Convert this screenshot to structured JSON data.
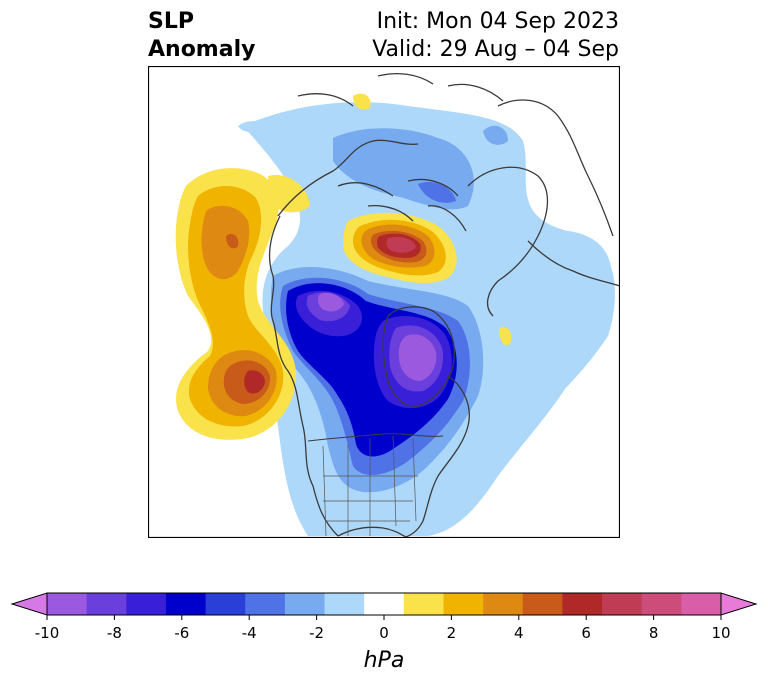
{
  "title": {
    "left_line1": "SLP",
    "left_line2": "Anomaly",
    "right_line1": "Init: Mon 04 Sep 2023",
    "right_line2": "Valid: 29 Aug – 04 Sep"
  },
  "colorbar": {
    "unit_label": "hPa",
    "tick_labels": [
      "-10",
      "-8",
      "-6",
      "-4",
      "-2",
      "0",
      "2",
      "4",
      "6",
      "8",
      "10"
    ],
    "colors": [
      "#d479e6",
      "#9b59e0",
      "#6a3fdc",
      "#3a1fd8",
      "#0000cc",
      "#2a3fd8",
      "#4f72e6",
      "#78aaf0",
      "#aed8fa",
      "#ffffff",
      "#fae24b",
      "#f0b400",
      "#de8a12",
      "#c85a1a",
      "#b02828",
      "#c03c55",
      "#cc4c7a",
      "#d85ea8",
      "#e87ad8"
    ]
  },
  "map": {
    "projection": "north-polar-stereographic",
    "anomalies": [
      {
        "name": "North Pacific positive anomaly (west lobe)",
        "level": "+4 to +6"
      },
      {
        "name": "North Pacific positive anomaly (south lobe)",
        "level": "+6"
      },
      {
        "name": "Arctic / Greenland positive anomaly",
        "level": "+8"
      },
      {
        "name": "Alaska / western Canada negative anomaly",
        "level": "-8"
      },
      {
        "name": "Hudson Bay / central Canada negative anomaly",
        "level": "-8"
      }
    ]
  }
}
